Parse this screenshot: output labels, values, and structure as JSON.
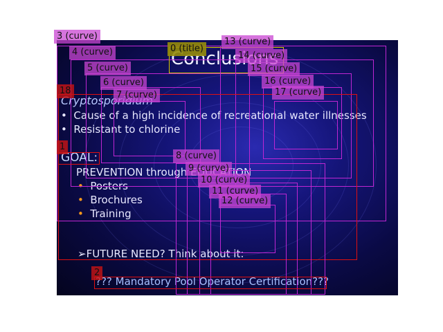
{
  "slide": {
    "title": "Conclusions",
    "subheading": "Cryptosporidium",
    "bullets": [
      "Cause of a high incidence of recreational water illnesses",
      "Resistant to chlorine"
    ],
    "goal_label": "GOAL:",
    "prevention_line": "PREVENTION through EDUCATION",
    "prevention_items": [
      "Posters",
      "Brochures",
      "Training"
    ],
    "future_line": "FUTURE NEED?  Think about it:",
    "final_line": "??? Mandatory Pool Operator Certification???",
    "bullet_glyph": "•",
    "arrow_glyph": "➢"
  },
  "annotations": [
    {
      "label": "3 (curve)",
      "kind": "curve"
    },
    {
      "label": "4 (curve)",
      "kind": "curve"
    },
    {
      "label": "5 (curve)",
      "kind": "curve"
    },
    {
      "label": "6 (curve)",
      "kind": "curve"
    },
    {
      "label": "7 (curve)",
      "kind": "curve"
    },
    {
      "label": "0 (title)",
      "kind": "title"
    },
    {
      "label": "13 (curve)",
      "kind": "curve"
    },
    {
      "label": "14 (curve)",
      "kind": "curve"
    },
    {
      "label": "15 (curve)",
      "kind": "curve"
    },
    {
      "label": "16 (curve)",
      "kind": "curve"
    },
    {
      "label": "17 (curve)",
      "kind": "curve"
    },
    {
      "label": "18",
      "kind": "text"
    },
    {
      "label": "1",
      "kind": "text"
    },
    {
      "label": "8 (curve)",
      "kind": "curve"
    },
    {
      "label": "9 (curve)",
      "kind": "curve"
    },
    {
      "label": "10 (curve)",
      "kind": "curve"
    },
    {
      "label": "11 (curve)",
      "kind": "curve"
    },
    {
      "label": "12 (curve)",
      "kind": "curve"
    },
    {
      "label": "2",
      "kind": "text"
    }
  ],
  "colors": {
    "curve": "#c026d3",
    "title": "#d8c800",
    "text": "#e01010",
    "bullet_orange": "#ff9a1a"
  }
}
